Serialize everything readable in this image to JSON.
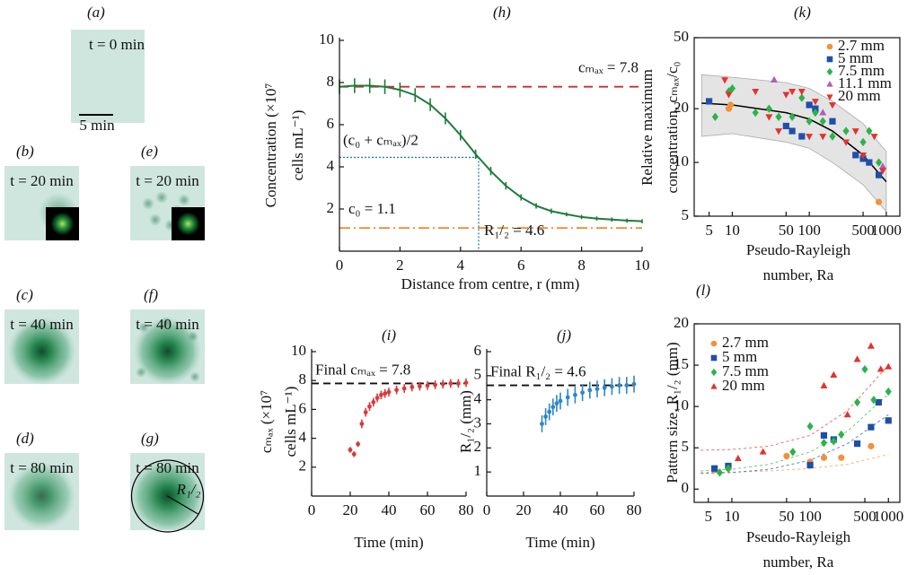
{
  "figure": {
    "panels": [
      {
        "label": "(a)",
        "caption": "t = 0 min"
      },
      {
        "label": "(b)",
        "caption": "t = 20 min"
      },
      {
        "label": "(c)",
        "caption": "t = 40 min"
      },
      {
        "label": "(d)",
        "caption": "t = 80 min"
      },
      {
        "label": "(e)",
        "caption": "t = 20 min"
      },
      {
        "label": "(f)",
        "caption": "t = 40 min"
      },
      {
        "label": "(g)",
        "caption": "t = 80 min"
      }
    ],
    "scale_bar": "5 min",
    "radius_label": "R₁/₂"
  },
  "chart_data": [
    {
      "type": "line",
      "panel_label": "(h)",
      "xlabel": "Distance from centre, r (mm)",
      "ylabel": [
        "Concentration (×10⁷",
        "cells mL⁻¹)"
      ],
      "x": [
        0,
        0.5,
        1,
        1.5,
        2,
        2.5,
        3,
        3.5,
        4,
        4.5,
        5,
        5.5,
        6,
        6.5,
        7,
        7.5,
        8,
        8.5,
        9,
        9.5,
        10
      ],
      "series": [
        {
          "color": "#1e7b3c",
          "values": [
            7.8,
            7.85,
            7.85,
            7.8,
            7.65,
            7.4,
            6.95,
            6.3,
            5.5,
            4.6,
            3.8,
            3.1,
            2.55,
            2.15,
            1.9,
            1.75,
            1.62,
            1.55,
            1.5,
            1.45,
            1.42
          ],
          "errors": [
            0.35,
            0.35,
            0.35,
            0.35,
            0.35,
            0.33,
            0.3,
            0.28,
            0.25,
            0.22,
            0.2,
            0.18,
            0.15,
            0.13,
            0.12,
            0.1,
            0.1,
            0.1,
            0.1,
            0.1,
            0.1
          ]
        }
      ],
      "xlim": [
        0,
        10
      ],
      "ylim": [
        0,
        10
      ],
      "xticks": [
        0,
        2,
        4,
        6,
        8,
        10
      ],
      "yticks": [
        2,
        4,
        6,
        8,
        10
      ],
      "hlines": [
        {
          "label": "cₘₐₓ = 7.8",
          "value": 7.8,
          "color": "#c9302c",
          "dash": "10 7"
        },
        {
          "label": "c₀ = 1.1",
          "value": 1.1,
          "color": "#ef8a2a",
          "dash": "12 4 2 4"
        }
      ],
      "midpoint": {
        "label": "(c₀ + cₘₐₓ)/2",
        "value": 4.45,
        "x_label": "R₁/₂ = 4.6",
        "x": 4.6,
        "color": "#2a7ab8"
      }
    },
    {
      "type": "scatter",
      "panel_label": "(i)",
      "xlabel": "Time (min)",
      "ylabel": [
        "cₘₐₓ (×10⁷",
        "cells mL⁻¹)"
      ],
      "x": [
        20,
        22,
        24,
        26,
        28,
        30,
        32,
        34,
        36,
        38,
        40,
        44,
        48,
        52,
        56,
        60,
        64,
        68,
        72,
        76,
        80
      ],
      "series": [
        {
          "color": "#d93a3a",
          "marker": "circle",
          "values": [
            3.2,
            2.9,
            3.6,
            5.0,
            5.8,
            6.2,
            6.5,
            6.8,
            7.0,
            7.1,
            7.2,
            7.35,
            7.45,
            7.55,
            7.6,
            7.65,
            7.7,
            7.75,
            7.8,
            7.8,
            7.85
          ],
          "errors": [
            0.2,
            0.2,
            0.2,
            0.3,
            0.3,
            0.3,
            0.3,
            0.3,
            0.3,
            0.3,
            0.3,
            0.3,
            0.3,
            0.3,
            0.3,
            0.3,
            0.3,
            0.3,
            0.3,
            0.3,
            0.3
          ]
        }
      ],
      "xlim": [
        0,
        80
      ],
      "ylim": [
        0,
        10
      ],
      "xticks": [
        0,
        20,
        40,
        60,
        80
      ],
      "yticks": [
        2,
        4,
        6,
        8,
        10
      ],
      "hlines": [
        {
          "label": "Final cₘₐₓ = 7.8",
          "value": 7.8,
          "color": "#111111",
          "dash": "8 5"
        }
      ]
    },
    {
      "type": "scatter",
      "panel_label": "(j)",
      "xlabel": "Time (min)",
      "ylabel": [
        "R₁/₂ (mm)"
      ],
      "x": [
        30,
        32,
        34,
        36,
        38,
        40,
        44,
        48,
        52,
        56,
        60,
        64,
        68,
        72,
        76,
        80
      ],
      "series": [
        {
          "color": "#2f86c6",
          "marker": "circle",
          "values": [
            3.0,
            3.3,
            3.5,
            3.7,
            3.85,
            3.95,
            4.1,
            4.2,
            4.3,
            4.4,
            4.45,
            4.5,
            4.55,
            4.6,
            4.6,
            4.65
          ],
          "errors": [
            0.35,
            0.35,
            0.35,
            0.35,
            0.35,
            0.35,
            0.35,
            0.35,
            0.35,
            0.35,
            0.35,
            0.35,
            0.35,
            0.35,
            0.35,
            0.35
          ]
        }
      ],
      "xlim": [
        0,
        80
      ],
      "ylim": [
        0,
        6
      ],
      "xticks": [
        0,
        20,
        40,
        60,
        80
      ],
      "yticks": [
        1,
        2,
        3,
        4,
        5,
        6
      ],
      "hlines": [
        {
          "label": "Final R₁/₂ = 4.6",
          "value": 4.6,
          "color": "#111111",
          "dash": "8 5"
        }
      ]
    },
    {
      "type": "scatter",
      "panel_label": "(k)",
      "xscale": "log",
      "yscale": "log",
      "legend": "upper right",
      "xlabel": [
        "Pseudo-Rayleigh",
        "number, Ra"
      ],
      "ylabel": [
        "Relative maximum",
        "concentration, cₘₐₓ/c₀"
      ],
      "xlim": [
        3.2,
        1500
      ],
      "ylim": [
        5,
        50
      ],
      "xticks": [
        5,
        10,
        50,
        100,
        500,
        1000
      ],
      "yticks": [
        5,
        10,
        20,
        50
      ],
      "fit": {
        "x": [
          4,
          10,
          50,
          100,
          200,
          500,
          1000
        ],
        "values": [
          21.5,
          21,
          19,
          17.5,
          15,
          11,
          7.8
        ],
        "lower": [
          14,
          14.5,
          13,
          12,
          10,
          7.5,
          5.3
        ],
        "upper": [
          31,
          30,
          28,
          26,
          22,
          16.5,
          11.5
        ]
      },
      "series": [
        {
          "name": "2.7 mm",
          "color": "#f0933a",
          "marker": "circle",
          "x": [
            9,
            9.5,
            800
          ],
          "values": [
            20,
            21,
            6
          ]
        },
        {
          "name": "5 mm",
          "color": "#1f4fa8",
          "marker": "square",
          "x": [
            5,
            50,
            60,
            80,
            100,
            120,
            200,
            400,
            500,
            600,
            800
          ],
          "values": [
            22,
            16,
            15,
            14,
            21,
            20,
            17,
            11,
            10.5,
            10,
            8.5
          ]
        },
        {
          "name": "7.5 mm",
          "color": "#2bb34a",
          "marker": "diamond",
          "x": [
            6,
            9,
            10,
            20,
            30,
            40,
            60,
            80,
            100,
            120,
            150,
            200,
            300,
            500,
            600,
            800
          ],
          "values": [
            18,
            25,
            26,
            19,
            20,
            18,
            18,
            23,
            17,
            19,
            17,
            14,
            15,
            13,
            15,
            10
          ]
        },
        {
          "name": "11.1 mm",
          "color": "#b05cc0",
          "marker": "triangle",
          "x": [
            35,
            150,
            900
          ],
          "values": [
            29,
            19,
            9.5
          ]
        },
        {
          "name": "20 mm",
          "color": "#e2332e",
          "marker": "triangle-down",
          "x": [
            8,
            9,
            20,
            30,
            40,
            50,
            60,
            80,
            100,
            120,
            150,
            200,
            300,
            400,
            500,
            700,
            900
          ],
          "values": [
            29,
            24,
            25,
            18,
            15,
            24,
            25,
            25,
            14,
            22,
            14,
            21,
            13,
            15,
            11,
            14,
            9
          ]
        }
      ]
    },
    {
      "type": "scatter",
      "panel_label": "(l)",
      "xscale": "log",
      "legend": "upper left",
      "xlabel": [
        "Pseudo-Rayleigh",
        "number, Ra"
      ],
      "ylabel": [
        "Pattern size, R₁/₂ (mm)"
      ],
      "xlim": [
        3.3,
        1400
      ],
      "ylim": [
        -1.6,
        20
      ],
      "xticks": [
        5,
        10,
        50,
        100,
        500,
        1000
      ],
      "yticks": [
        0,
        5,
        10,
        15,
        20
      ],
      "fit_x": [
        4,
        10,
        30,
        100,
        300,
        1000
      ],
      "series": [
        {
          "name": "2.7 mm",
          "color": "#f0933a",
          "marker": "circle",
          "x": [
            6,
            9,
            50,
            100,
            150,
            250,
            600
          ],
          "values": [
            2.3,
            2.5,
            4.0,
            3.3,
            3.8,
            3.8,
            5.2
          ],
          "fit": [
            2.0,
            2.05,
            2.2,
            2.5,
            3.0,
            4.2
          ]
        },
        {
          "name": "5 mm",
          "color": "#1f4fa8",
          "marker": "square",
          "x": [
            6,
            9,
            100,
            150,
            200,
            400,
            600,
            750,
            1000
          ],
          "values": [
            2.5,
            2.8,
            2.9,
            6.5,
            6.0,
            5.5,
            7.5,
            10.5,
            8.3
          ],
          "fit": [
            1.9,
            2.0,
            2.4,
            3.5,
            5.5,
            9
          ]
        },
        {
          "name": "7.5 mm",
          "color": "#2bb34a",
          "marker": "diamond",
          "x": [
            7,
            9,
            60,
            100,
            150,
            200,
            250,
            400,
            500,
            650,
            1000
          ],
          "values": [
            2.0,
            2.5,
            4.5,
            7.6,
            5.6,
            5.8,
            6.6,
            10.5,
            14.5,
            10.8,
            11.8
          ],
          "fit": [
            2.2,
            2.4,
            3.0,
            4.5,
            7,
            11.5
          ]
        },
        {
          "name": "20 mm",
          "color": "#e2332e",
          "marker": "triangle",
          "x": [
            12,
            25,
            150,
            200,
            300,
            400,
            600,
            800,
            1000
          ],
          "values": [
            3.7,
            4.5,
            12.5,
            13.8,
            9,
            15.7,
            17.3,
            14.5,
            14.8
          ],
          "fit": [
            4.7,
            4.8,
            5.2,
            6.5,
            9.5,
            15
          ]
        }
      ]
    }
  ]
}
